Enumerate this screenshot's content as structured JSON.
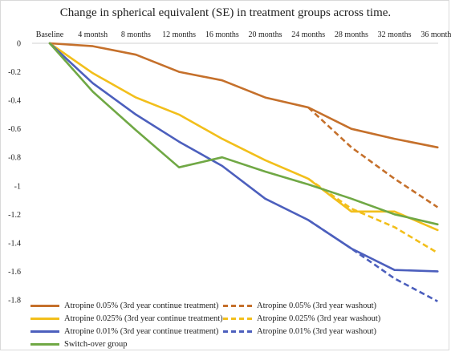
{
  "chart_data": {
    "type": "line",
    "title": "Change in spherical equivalent (SE) in treatment groups across time.",
    "xlabel": "",
    "ylabel": "",
    "categories": [
      "Baseline",
      "4 montsh",
      "8 months",
      "12 months",
      "16 months",
      "20 months",
      "24 months",
      "28 months",
      "32 months",
      "36 months"
    ],
    "ylim": [
      -1.8,
      0
    ],
    "yticks": [
      "0",
      "-0.2",
      "-0.4",
      "-0.6",
      "-0.8",
      "-1",
      "-1.2",
      "-1.4",
      "-1.6",
      "-1.8"
    ],
    "grid": false,
    "legend_position": "bottom",
    "series": [
      {
        "name": "Atropine 0.05% (3rd year continue treatment)",
        "color": "#c5702b",
        "dash": false,
        "values": [
          0,
          -0.02,
          -0.08,
          -0.2,
          -0.26,
          -0.38,
          -0.45,
          -0.6,
          -0.67,
          -0.73
        ]
      },
      {
        "name": "Atropine 0.05% (3rd year washout)",
        "color": "#c5702b",
        "dash": true,
        "values": [
          null,
          null,
          null,
          null,
          null,
          null,
          -0.45,
          -0.73,
          -0.95,
          -1.15
        ]
      },
      {
        "name": "Atropine 0.025% (3rd year continue treatment)",
        "color": "#f2bf1b",
        "dash": false,
        "values": [
          0,
          -0.21,
          -0.38,
          -0.5,
          -0.67,
          -0.82,
          -0.95,
          -1.18,
          -1.18,
          -1.31
        ]
      },
      {
        "name": "Atropine 0.025% (3rd year washout)",
        "color": "#f2bf1b",
        "dash": true,
        "values": [
          null,
          null,
          null,
          null,
          null,
          null,
          -0.95,
          -1.16,
          -1.29,
          -1.47
        ]
      },
      {
        "name": "Atropine 0.01% (3rd year continue treatment)",
        "color": "#4c5fbd",
        "dash": false,
        "values": [
          0,
          -0.28,
          -0.5,
          -0.69,
          -0.86,
          -1.09,
          -1.24,
          -1.44,
          -1.59,
          -1.6
        ]
      },
      {
        "name": "Atropine 0.01% (3rd year washout)",
        "color": "#4c5fbd",
        "dash": true,
        "values": [
          null,
          null,
          null,
          null,
          null,
          null,
          -1.24,
          -1.44,
          -1.65,
          -1.81
        ]
      },
      {
        "name": "Switch-over group",
        "color": "#70a845",
        "dash": false,
        "values": [
          0,
          -0.34,
          -0.61,
          -0.87,
          -0.8,
          -0.9,
          -0.99,
          -1.09,
          -1.2,
          -1.27
        ]
      }
    ]
  }
}
